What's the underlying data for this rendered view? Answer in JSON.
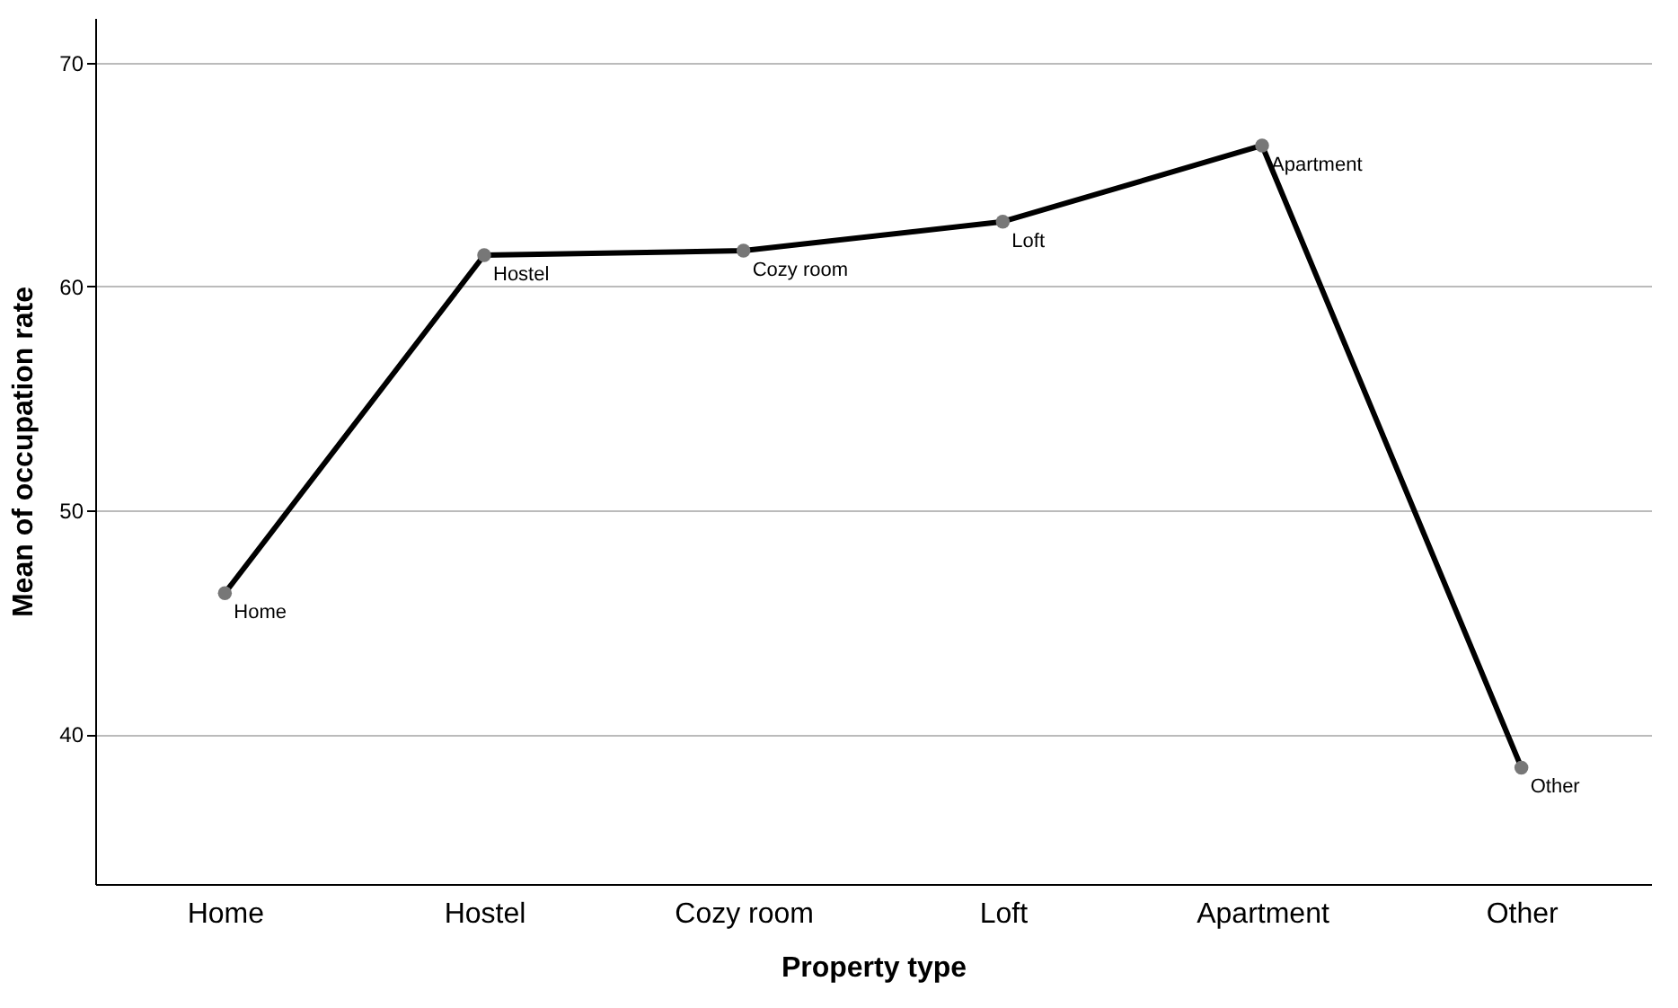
{
  "chart_data": {
    "type": "line",
    "xlabel": "Property type",
    "ylabel": "Mean of occupation rate",
    "categories": [
      "Home",
      "Hostel",
      "Cozy room",
      "Loft",
      "Apartment",
      "Other"
    ],
    "series": [
      {
        "color": "#000000",
        "values": [
          46.3,
          61.4,
          61.6,
          62.9,
          66.3,
          38.5
        ]
      }
    ],
    "ylim": [
      33.3,
      72
    ],
    "yticks": [
      40,
      50,
      60,
      70
    ],
    "grid": "y",
    "marker": "circle",
    "line_style": "solid",
    "annotations": [
      {
        "text": "Home",
        "x": "Home",
        "y": 46.3
      },
      {
        "text": "Hostel",
        "x": "Hostel",
        "y": 61.4
      },
      {
        "text": "Cozy room",
        "x": "Cozy room",
        "y": 61.6
      },
      {
        "text": "Loft",
        "x": "Loft",
        "y": 62.9
      },
      {
        "text": "Apartment",
        "x": "Apartment",
        "y": 66.3
      },
      {
        "text": "Other",
        "x": "Other",
        "y": 38.5
      }
    ]
  }
}
